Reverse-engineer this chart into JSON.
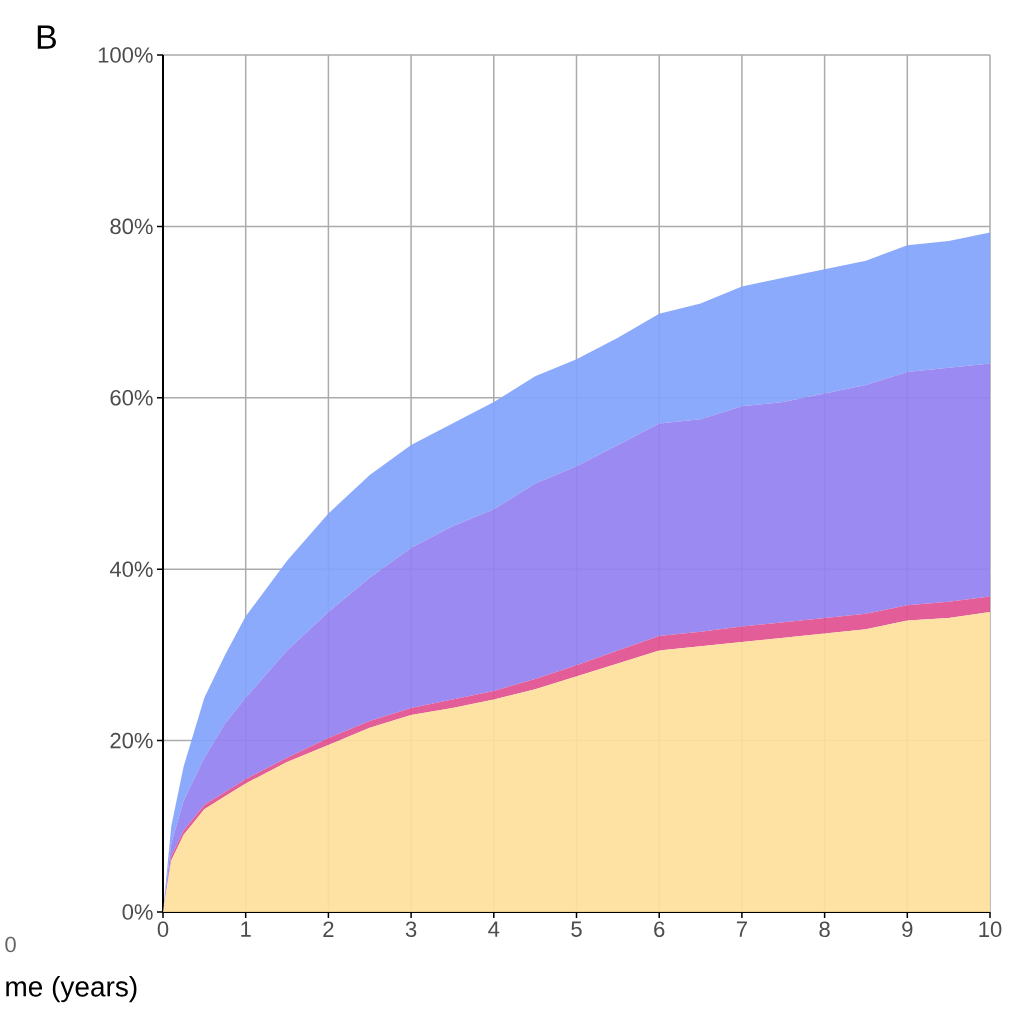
{
  "chart_data": {
    "type": "area",
    "title": "B",
    "xlabel": "me (years)",
    "annotations": [
      "0"
    ],
    "stacked": true,
    "grid": true,
    "x": [
      0,
      0.1,
      0.25,
      0.5,
      0.75,
      1,
      1.5,
      2,
      2.5,
      3,
      3.5,
      4,
      4.5,
      5,
      5.5,
      6,
      6.5,
      7,
      7.5,
      8,
      8.5,
      9,
      9.5,
      10
    ],
    "series": [
      {
        "color": "#fddf9b",
        "values": [
          0,
          6,
          9,
          12,
          13.5,
          15,
          17.5,
          19.5,
          21.5,
          23,
          23.8,
          24.8,
          26,
          27.5,
          29,
          30.5,
          31,
          31.5,
          32,
          32.5,
          33,
          34,
          34.3,
          35
        ]
      },
      {
        "color": "#e14f8f",
        "values": [
          0,
          0.5,
          0.5,
          0.5,
          0.5,
          0.5,
          0.5,
          0.8,
          0.8,
          0.8,
          1,
          1,
          1.2,
          1.3,
          1.5,
          1.7,
          1.7,
          1.8,
          1.8,
          1.8,
          1.8,
          1.8,
          1.9,
          1.8
        ]
      },
      {
        "color": "#9280f0",
        "values": [
          0,
          1.5,
          3.5,
          5.5,
          8,
          9.5,
          12.5,
          14.7,
          16.7,
          18.7,
          20.2,
          21.2,
          22.8,
          23.2,
          24,
          24.8,
          24.8,
          25.7,
          25.7,
          26.2,
          26.7,
          27.2,
          27.3,
          27.2
        ]
      },
      {
        "color": "#82a3fc",
        "values": [
          0,
          2,
          4,
          7,
          8,
          9.5,
          10.5,
          11.5,
          12,
          12,
          12,
          12.5,
          12.5,
          12.5,
          12.5,
          12.8,
          13.5,
          14,
          14.5,
          14.5,
          14.5,
          14.8,
          14.8,
          15.3
        ]
      }
    ],
    "xlim": [
      0,
      10
    ],
    "ylim": [
      0,
      100
    ],
    "xticks": [
      0,
      1,
      2,
      3,
      4,
      5,
      6,
      7,
      8,
      9,
      10
    ],
    "yticks": [
      {
        "value": 0,
        "label": "0%"
      },
      {
        "value": 20,
        "label": "20%"
      },
      {
        "value": 40,
        "label": "40%"
      },
      {
        "value": 60,
        "label": "60%"
      },
      {
        "value": 80,
        "label": "80%"
      },
      {
        "value": 100,
        "label": "100%"
      }
    ]
  }
}
